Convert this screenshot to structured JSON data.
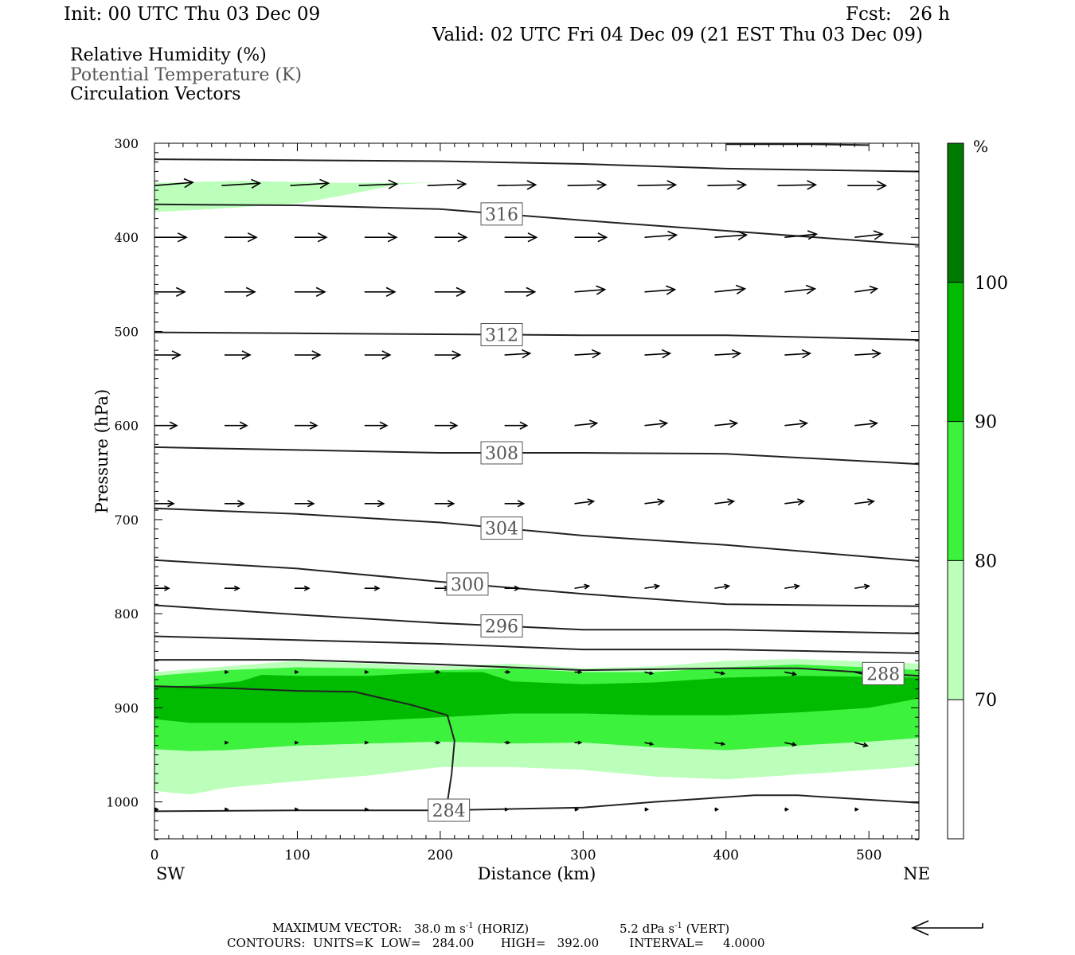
{
  "header": {
    "init": "Init: 00 UTC Thu 03 Dec 09",
    "fcst": "Fcst:   26 h",
    "valid": "Valid: 02 UTC Fri 04 Dec 09 (21 EST Thu 03 Dec 09)"
  },
  "legend_text": {
    "rh": "Relative Humidity (%)",
    "theta": "Potential Temperature (K)",
    "vectors": "Circulation Vectors"
  },
  "colors": {
    "rh_70_80": "#bbffbb",
    "rh_80_90": "#3cf23c",
    "rh_90_100": "#00bb00",
    "rh_100_plus": "#007a00",
    "theta_line": "#222222",
    "vector": "#000000",
    "label_text_gray": "#555555"
  },
  "footer": {
    "max_vector_label": "MAXIMUM VECTOR:",
    "max_vector_horiz": "38.0 m s",
    "horiz_tag": "(HORIZ)",
    "max_vector_vert": "5.2 dPa s",
    "vert_tag": "(VERT)",
    "exponent": "-1",
    "contours": "CONTOURS:  UNITS=K  LOW=   284.00       HIGH=   392.00        INTERVAL=     4.0000"
  },
  "chart_data": {
    "type": "cross-section",
    "xlabel": "Distance (km)",
    "ylabel": "Pressure (hPa)",
    "x_ticks": [
      0,
      100,
      200,
      300,
      400,
      500
    ],
    "y_ticks": [
      300,
      400,
      500,
      600,
      700,
      800,
      900,
      1000
    ],
    "xlim": [
      0,
      535
    ],
    "ylim": [
      1040,
      300
    ],
    "left_end_label": "SW",
    "right_end_label": "NE",
    "colorbar": {
      "unit": "%",
      "levels": [
        70,
        80,
        90,
        100
      ],
      "label_levels": [
        "70",
        "80",
        "90",
        "100"
      ]
    },
    "rh_regions": [
      {
        "level": "70-80",
        "upper": [
          [
            0,
            342
          ],
          [
            60,
            340
          ],
          [
            130,
            342
          ],
          [
            180,
            342
          ],
          [
            200,
            341
          ]
        ],
        "lower": [
          [
            200,
            341
          ],
          [
            170,
            344
          ],
          [
            130,
            356
          ],
          [
            100,
            364
          ],
          [
            40,
            370
          ],
          [
            0,
            373
          ]
        ]
      },
      {
        "level": "70-80",
        "upper": [
          [
            0,
            862
          ],
          [
            50,
            856
          ],
          [
            100,
            850
          ],
          [
            150,
            853
          ],
          [
            200,
            856
          ],
          [
            250,
            853
          ],
          [
            300,
            858
          ],
          [
            350,
            856
          ],
          [
            400,
            850
          ],
          [
            450,
            848
          ],
          [
            500,
            851
          ],
          [
            535,
            853
          ]
        ],
        "lower": [
          [
            535,
            962
          ],
          [
            500,
            966
          ],
          [
            450,
            971
          ],
          [
            400,
            976
          ],
          [
            350,
            973
          ],
          [
            300,
            966
          ],
          [
            250,
            963
          ],
          [
            200,
            963
          ],
          [
            150,
            972
          ],
          [
            100,
            978
          ],
          [
            50,
            985
          ],
          [
            25,
            992
          ],
          [
            10,
            990
          ],
          [
            0,
            988
          ]
        ]
      },
      {
        "level": "80-90",
        "upper": [
          [
            0,
            866
          ],
          [
            50,
            860
          ],
          [
            100,
            857
          ],
          [
            150,
            858
          ],
          [
            200,
            860
          ],
          [
            250,
            858
          ],
          [
            300,
            862
          ],
          [
            350,
            862
          ],
          [
            400,
            857
          ],
          [
            450,
            854
          ],
          [
            500,
            857
          ],
          [
            535,
            860
          ]
        ],
        "lower": [
          [
            535,
            932
          ],
          [
            500,
            936
          ],
          [
            450,
            940
          ],
          [
            400,
            945
          ],
          [
            350,
            942
          ],
          [
            300,
            937
          ],
          [
            250,
            938
          ],
          [
            200,
            936
          ],
          [
            150,
            938
          ],
          [
            100,
            940
          ],
          [
            50,
            945
          ],
          [
            25,
            946
          ],
          [
            0,
            944
          ]
        ]
      },
      {
        "level": "90-100",
        "upper": [
          [
            0,
            878
          ],
          [
            30,
            876
          ],
          [
            60,
            872
          ],
          [
            75,
            865
          ],
          [
            100,
            866
          ],
          [
            150,
            866
          ],
          [
            200,
            862
          ],
          [
            230,
            862
          ],
          [
            250,
            872
          ],
          [
            300,
            875
          ],
          [
            350,
            873
          ],
          [
            400,
            868
          ],
          [
            450,
            866
          ],
          [
            500,
            867
          ],
          [
            535,
            868
          ]
        ],
        "lower": [
          [
            535,
            890
          ],
          [
            500,
            900
          ],
          [
            450,
            905
          ],
          [
            400,
            908
          ],
          [
            350,
            908
          ],
          [
            300,
            906
          ],
          [
            250,
            906
          ],
          [
            200,
            910
          ],
          [
            150,
            914
          ],
          [
            100,
            916
          ],
          [
            50,
            916
          ],
          [
            25,
            916
          ],
          [
            0,
            912
          ]
        ]
      }
    ],
    "theta_contours": [
      {
        "theta": 320,
        "points": [
          [
            400,
            301
          ],
          [
            460,
            301
          ],
          [
            500,
            302
          ]
        ]
      },
      {
        "theta": 318,
        "points": [
          [
            0,
            317
          ],
          [
            100,
            318
          ],
          [
            200,
            319
          ],
          [
            300,
            322
          ],
          [
            400,
            327
          ],
          [
            535,
            330
          ]
        ]
      },
      {
        "theta": 316,
        "points": [
          [
            0,
            365
          ],
          [
            100,
            366
          ],
          [
            200,
            370
          ],
          [
            300,
            382
          ],
          [
            400,
            393
          ],
          [
            535,
            408
          ]
        ],
        "label": "316",
        "label_x": 243
      },
      {
        "theta": 312,
        "points": [
          [
            0,
            501
          ],
          [
            100,
            502
          ],
          [
            200,
            503
          ],
          [
            300,
            504
          ],
          [
            400,
            504
          ],
          [
            535,
            509
          ]
        ],
        "label": "312",
        "label_x": 243
      },
      {
        "theta": 308,
        "points": [
          [
            0,
            623
          ],
          [
            100,
            626
          ],
          [
            200,
            629
          ],
          [
            300,
            629
          ],
          [
            400,
            630
          ],
          [
            535,
            641
          ]
        ],
        "label": "308",
        "label_x": 243
      },
      {
        "theta": 304,
        "points": [
          [
            0,
            688
          ],
          [
            100,
            694
          ],
          [
            200,
            703
          ],
          [
            300,
            717
          ],
          [
            400,
            727
          ],
          [
            535,
            744
          ]
        ],
        "label": "304",
        "label_x": 243
      },
      {
        "theta": 300,
        "points": [
          [
            0,
            743
          ],
          [
            100,
            752
          ],
          [
            200,
            766
          ],
          [
            300,
            779
          ],
          [
            400,
            790
          ],
          [
            535,
            792
          ]
        ],
        "label": "300",
        "label_x": 219
      },
      {
        "theta": 296,
        "points": [
          [
            0,
            791
          ],
          [
            100,
            801
          ],
          [
            200,
            810
          ],
          [
            300,
            817
          ],
          [
            400,
            817
          ],
          [
            535,
            821
          ]
        ],
        "label": "296",
        "label_x": 243
      },
      {
        "theta": 292,
        "points": [
          [
            0,
            824
          ],
          [
            100,
            828
          ],
          [
            200,
            832
          ],
          [
            300,
            838
          ],
          [
            400,
            838
          ],
          [
            535,
            842
          ]
        ]
      },
      {
        "theta": 288,
        "points": [
          [
            0,
            849
          ],
          [
            100,
            849
          ],
          [
            200,
            854
          ],
          [
            300,
            860
          ],
          [
            400,
            858
          ],
          [
            450,
            858
          ],
          [
            535,
            866
          ]
        ],
        "label": "288",
        "label_x": 510
      },
      {
        "theta": 284,
        "points": [
          [
            0,
            1010
          ],
          [
            100,
            1009
          ],
          [
            200,
            1009
          ],
          [
            300,
            1006
          ],
          [
            350,
            1000
          ],
          [
            420,
            993
          ],
          [
            450,
            993
          ],
          [
            535,
            1001
          ]
        ],
        "label": "284",
        "label_x": 206
      },
      {
        "theta": 284,
        "points": [
          [
            0,
            877
          ],
          [
            50,
            879
          ],
          [
            100,
            882
          ],
          [
            140,
            883
          ],
          [
            160,
            890
          ],
          [
            180,
            897
          ],
          [
            205,
            908
          ],
          [
            210,
            935
          ],
          [
            208,
            970
          ],
          [
            205,
            1000
          ]
        ]
      }
    ],
    "vectors": [
      {
        "p": 345,
        "x": [
          0,
          47,
          95,
          143,
          191,
          240,
          289,
          338,
          387,
          436,
          485
        ],
        "len": [
          48,
          48,
          48,
          48,
          48,
          48,
          48,
          48,
          48,
          48,
          48
        ],
        "dip": [
          -4,
          -3,
          -3,
          -2,
          -2,
          -1,
          -1,
          -1,
          -1,
          -1,
          0
        ]
      },
      {
        "p": 400,
        "x": [
          0,
          49,
          98,
          147,
          196,
          245,
          294,
          343,
          392,
          441,
          490
        ],
        "len": [
          40,
          40,
          40,
          40,
          40,
          40,
          40,
          40,
          40,
          40,
          35
        ],
        "dip": [
          0,
          0,
          0,
          0,
          0,
          0,
          0,
          -3,
          -3,
          -4,
          -4
        ]
      },
      {
        "p": 458,
        "x": [
          0,
          49,
          98,
          147,
          196,
          245,
          294,
          343,
          392,
          441,
          490
        ],
        "len": [
          38,
          38,
          38,
          38,
          38,
          38,
          38,
          38,
          38,
          38,
          28
        ],
        "dip": [
          0,
          0,
          0,
          0,
          0,
          0,
          -3,
          -3,
          -4,
          -4,
          -4
        ]
      },
      {
        "p": 525,
        "x": [
          0,
          49,
          98,
          147,
          196,
          245,
          294,
          343,
          392,
          441,
          490
        ],
        "len": [
          32,
          32,
          32,
          32,
          32,
          32,
          32,
          32,
          32,
          32,
          32
        ],
        "dip": [
          0,
          0,
          0,
          0,
          0,
          -2,
          -2,
          -2,
          -2,
          -2,
          -2
        ]
      },
      {
        "p": 600,
        "x": [
          0,
          49,
          98,
          147,
          196,
          245,
          294,
          343,
          392,
          441,
          490
        ],
        "len": [
          28,
          28,
          28,
          28,
          28,
          28,
          28,
          28,
          28,
          28,
          28
        ],
        "dip": [
          0,
          0,
          0,
          0,
          0,
          0,
          -3,
          -3,
          -3,
          -3,
          -3
        ]
      },
      {
        "p": 683,
        "x": [
          0,
          49,
          98,
          147,
          196,
          245,
          294,
          343,
          392,
          441,
          490
        ],
        "len": [
          24,
          24,
          24,
          24,
          24,
          24,
          24,
          24,
          24,
          24,
          24
        ],
        "dip": [
          0,
          0,
          0,
          0,
          0,
          0,
          -3,
          -3,
          -3,
          -3,
          -3
        ]
      },
      {
        "p": 773,
        "x": [
          0,
          49,
          98,
          147,
          196,
          245,
          294,
          343,
          392,
          441,
          490
        ],
        "len": [
          18,
          18,
          18,
          18,
          18,
          18,
          18,
          18,
          18,
          18,
          18
        ],
        "dip": [
          0,
          0,
          0,
          0,
          0,
          0,
          -3,
          -3,
          -3,
          -3,
          -3
        ]
      },
      {
        "p": 862,
        "x": [
          49,
          98,
          147,
          196,
          245,
          294,
          343,
          392,
          441,
          490
        ],
        "len": [
          4,
          4,
          4,
          6,
          6,
          8,
          10,
          12,
          14,
          16
        ],
        "dip": [
          0,
          0,
          0,
          0,
          0,
          0,
          2,
          2,
          3,
          4
        ]
      },
      {
        "p": 937,
        "x": [
          49,
          98,
          147,
          196,
          245,
          294,
          343,
          392,
          441,
          490
        ],
        "len": [
          4,
          4,
          4,
          6,
          6,
          8,
          10,
          12,
          14,
          16
        ],
        "dip": [
          0,
          0,
          0,
          0,
          0,
          0,
          2,
          2,
          3,
          4
        ]
      },
      {
        "p": 1008,
        "x": [
          0,
          49,
          98,
          147,
          196,
          245,
          294,
          343,
          392,
          441,
          490
        ],
        "len": [
          4,
          4,
          4,
          4,
          4,
          4,
          4,
          4,
          4,
          4,
          4
        ],
        "dip": [
          0,
          0,
          0,
          0,
          0,
          0,
          0,
          0,
          0,
          0,
          0
        ]
      }
    ]
  }
}
